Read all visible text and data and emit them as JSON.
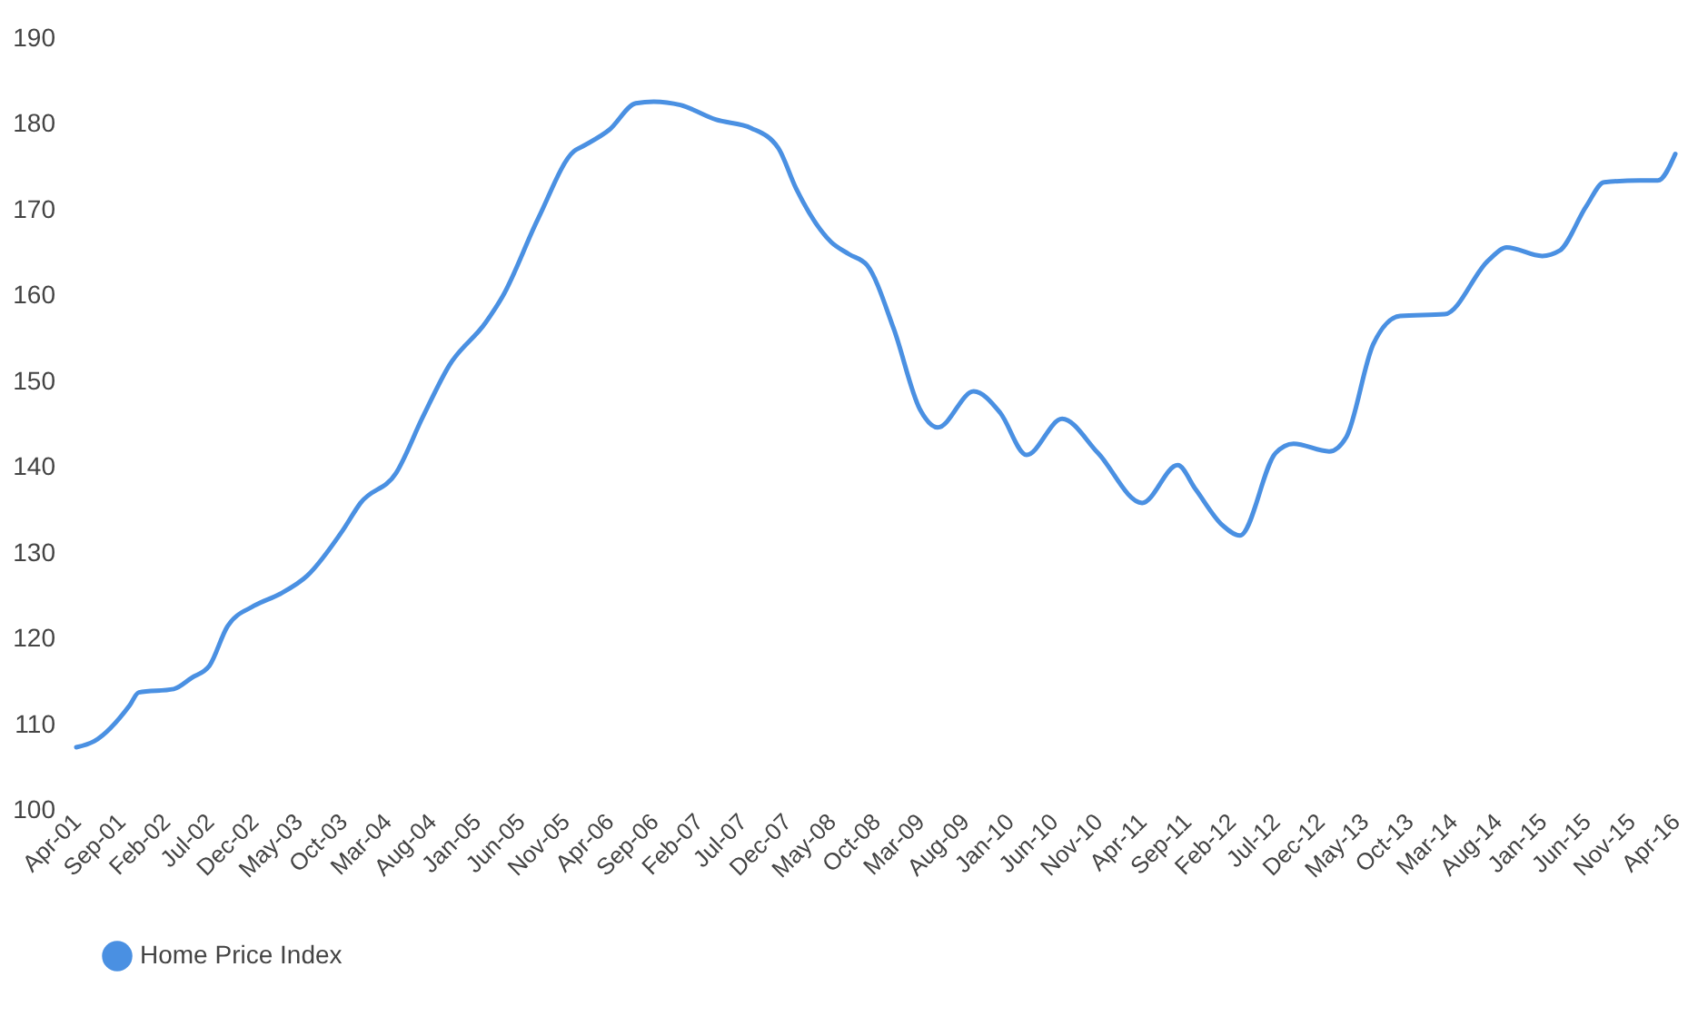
{
  "chart_data": {
    "type": "line",
    "x": [
      "2001-04",
      "2001-06",
      "2001-10",
      "2001-11",
      "2002-03",
      "2002-05",
      "2002-07",
      "2002-09",
      "2002-12",
      "2003-03",
      "2003-06",
      "2003-10",
      "2003-12",
      "2004-04",
      "2004-07",
      "2004-10",
      "2005-02",
      "2005-04",
      "2005-08",
      "2005-12",
      "2006-01",
      "2006-04",
      "2006-07",
      "2006-09",
      "2006-12",
      "2007-04",
      "2007-08",
      "2007-11",
      "2008-01",
      "2008-05",
      "2008-07",
      "2008-09",
      "2008-12",
      "2009-03",
      "2009-05",
      "2009-09",
      "2009-12",
      "2010-03",
      "2010-07",
      "2010-11",
      "2011-04",
      "2011-08",
      "2011-10",
      "2012-01",
      "2012-03",
      "2012-07",
      "2012-09",
      "2013-01",
      "2013-03",
      "2013-06",
      "2013-09",
      "2014-02",
      "2014-07",
      "2014-09",
      "2015-01",
      "2015-03",
      "2015-06",
      "2015-08",
      "2015-12",
      "2016-02",
      "2016-04"
    ],
    "series": [
      {
        "name": "Home Price Index",
        "color": "#4a90e2",
        "values": [
          107.3,
          108,
          112.2,
          113.7,
          114.1,
          115.4,
          116.8,
          121.4,
          123.8,
          125.2,
          127.3,
          132.6,
          135.8,
          139.3,
          145.8,
          151.9,
          156.8,
          159.9,
          169,
          176.8,
          177.4,
          179.3,
          182.4,
          182.6,
          182.2,
          180.5,
          179.5,
          177.2,
          172.5,
          166.2,
          164.8,
          163.5,
          156.1,
          146.7,
          144.6,
          148.8,
          146.3,
          141.4,
          145.6,
          141.6,
          135.8,
          140.2,
          137.4,
          133.2,
          132,
          141.6,
          142.7,
          141.8,
          143.5,
          154.3,
          157.6,
          157.8,
          164.1,
          165.6,
          164.6,
          165.2,
          170.4,
          173.2,
          173.4,
          173.4,
          176.5
        ]
      }
    ],
    "xlim": [
      "2001-04",
      "2016-04"
    ],
    "xticks": [
      {
        "value": "2001-04",
        "label": "Apr-01"
      },
      {
        "value": "2001-09",
        "label": "Sep-01"
      },
      {
        "value": "2002-02",
        "label": "Feb-02"
      },
      {
        "value": "2002-07",
        "label": "Jul-02"
      },
      {
        "value": "2002-12",
        "label": "Dec-02"
      },
      {
        "value": "2003-05",
        "label": "May-03"
      },
      {
        "value": "2003-10",
        "label": "Oct-03"
      },
      {
        "value": "2004-03",
        "label": "Mar-04"
      },
      {
        "value": "2004-08",
        "label": "Aug-04"
      },
      {
        "value": "2005-01",
        "label": "Jan-05"
      },
      {
        "value": "2005-06",
        "label": "Jun-05"
      },
      {
        "value": "2005-11",
        "label": "Nov-05"
      },
      {
        "value": "2006-04",
        "label": "Apr-06"
      },
      {
        "value": "2006-09",
        "label": "Sep-06"
      },
      {
        "value": "2007-02",
        "label": "Feb-07"
      },
      {
        "value": "2007-07",
        "label": "Jul-07"
      },
      {
        "value": "2007-12",
        "label": "Dec-07"
      },
      {
        "value": "2008-05",
        "label": "May-08"
      },
      {
        "value": "2008-10",
        "label": "Oct-08"
      },
      {
        "value": "2009-03",
        "label": "Mar-09"
      },
      {
        "value": "2009-08",
        "label": "Aug-09"
      },
      {
        "value": "2010-01",
        "label": "Jan-10"
      },
      {
        "value": "2010-06",
        "label": "Jun-10"
      },
      {
        "value": "2010-11",
        "label": "Nov-10"
      },
      {
        "value": "2011-04",
        "label": "Apr-11"
      },
      {
        "value": "2011-09",
        "label": "Sep-11"
      },
      {
        "value": "2012-02",
        "label": "Feb-12"
      },
      {
        "value": "2012-07",
        "label": "Jul-12"
      },
      {
        "value": "2012-12",
        "label": "Dec-12"
      },
      {
        "value": "2013-05",
        "label": "May-13"
      },
      {
        "value": "2013-10",
        "label": "Oct-13"
      },
      {
        "value": "2014-03",
        "label": "Mar-14"
      },
      {
        "value": "2014-08",
        "label": "Aug-14"
      },
      {
        "value": "2015-01",
        "label": "Jan-15"
      },
      {
        "value": "2015-06",
        "label": "Jun-15"
      },
      {
        "value": "2015-11",
        "label": "Nov-15"
      },
      {
        "value": "2016-04",
        "label": "Apr-16"
      }
    ],
    "ylim": [
      100,
      190
    ],
    "yticks": [
      100,
      110,
      120,
      130,
      140,
      150,
      160,
      170,
      180,
      190
    ],
    "grid": false,
    "legend": "bottom"
  }
}
